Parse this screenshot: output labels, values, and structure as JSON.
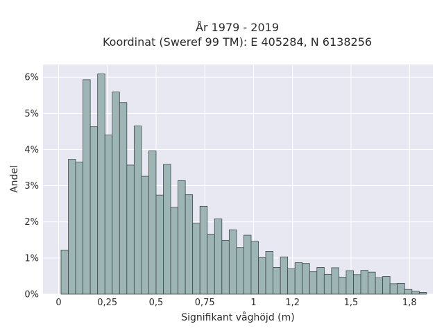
{
  "chart_data": {
    "type": "bar",
    "title_line1": "År 1979 - 2019",
    "title_line2": "Koordinat (Sweref 99 TM): E 405284, N 6138256",
    "xlabel": "Signifikant våghöjd (m)",
    "ylabel": "Andel",
    "bin_width": 0.0375,
    "x_start": 0.0125,
    "xlim": [
      -0.08,
      1.92
    ],
    "ylim": [
      0,
      0.0635
    ],
    "x_ticks": [
      {
        "value": 0,
        "label": "0"
      },
      {
        "value": 0.25,
        "label": "0,25"
      },
      {
        "value": 0.5,
        "label": "0,5"
      },
      {
        "value": 0.75,
        "label": "0,75"
      },
      {
        "value": 1,
        "label": "1"
      },
      {
        "value": 1.2,
        "label": "1,2"
      },
      {
        "value": 1.5,
        "label": "1,5"
      },
      {
        "value": 1.8,
        "label": "1,8"
      }
    ],
    "y_ticks": [
      {
        "value": 0,
        "label": "0%"
      },
      {
        "value": 0.01,
        "label": "1%"
      },
      {
        "value": 0.02,
        "label": "2%"
      },
      {
        "value": 0.03,
        "label": "3%"
      },
      {
        "value": 0.04,
        "label": "4%"
      },
      {
        "value": 0.05,
        "label": "5%"
      },
      {
        "value": 0.06,
        "label": "6%"
      }
    ],
    "values": [
      0.0122,
      0.0373,
      0.0365,
      0.0593,
      0.0463,
      0.0609,
      0.044,
      0.0559,
      0.053,
      0.0357,
      0.0465,
      0.0326,
      0.0396,
      0.0274,
      0.0359,
      0.024,
      0.0314,
      0.0275,
      0.0196,
      0.0243,
      0.0166,
      0.0208,
      0.0149,
      0.0178,
      0.0129,
      0.0163,
      0.0146,
      0.0101,
      0.0118,
      0.0074,
      0.0103,
      0.007,
      0.0087,
      0.0085,
      0.0062,
      0.0074,
      0.0055,
      0.0073,
      0.0047,
      0.0065,
      0.0054,
      0.0066,
      0.0061,
      0.0045,
      0.0049,
      0.0029,
      0.003,
      0.0013,
      0.0008,
      0.0005
    ],
    "grid": true,
    "colors": {
      "bar_fill": "#9db5b5",
      "bar_stroke": "#3b4747",
      "plot_bg": "#e8e8f2",
      "grid": "#ffffff"
    }
  }
}
